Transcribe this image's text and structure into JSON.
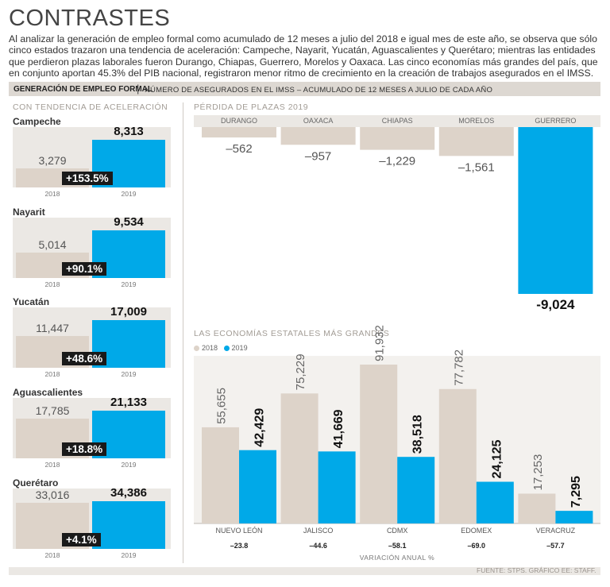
{
  "title": "CONTRASTES",
  "intro": "Al analizar la generación de empleo formal como acumulado de 12 meses a julio del 2018 e igual mes de este año, se observa que sólo cinco estados trazaron una tendencia de aceleración: Campeche, Nayarit, Yucatán, Aguascalientes y Querétaro; mientras las entidades que perdieron plazas laborales fueron Durango, Chiapas, Guerrero, Morelos y Oaxaca. Las cinco economías más grandes del país, que en conjunto aportan 45.3% del PIB nacional, registraron menor ritmo de crecimiento en la creación de trabajos asegurados en el IMSS.",
  "banner": {
    "bold": "GENERACIÓN DE EMPLEO FORMAL",
    "sep": "|",
    "rest": "NÚMERO DE ASEGURADOS EN EL IMSS – ACUMULADO DE 12 MESES A JULIO DE CADA AÑO"
  },
  "colors": {
    "y2018": "#ddd3c9",
    "y2019": "#00a9e8",
    "loss": "#ddd3c9"
  },
  "source": "FUENTE: STPS. GRÁFICO EE: STAFF.",
  "chart_data": [
    {
      "type": "bar",
      "title": "CON TENDENCIA DE ACELERACIÓN",
      "categories": [
        "2018",
        "2019"
      ],
      "series": [
        {
          "name": "Campeche",
          "values": [
            3279,
            8313
          ],
          "labels": [
            "3,279",
            "8,313"
          ],
          "change": "+153.5%"
        },
        {
          "name": "Nayarit",
          "values": [
            5014,
            9534
          ],
          "labels": [
            "5,014",
            "9,534"
          ],
          "change": "+90.1%"
        },
        {
          "name": "Yucatán",
          "values": [
            11447,
            17009
          ],
          "labels": [
            "11,447",
            "17,009"
          ],
          "change": "+48.6%"
        },
        {
          "name": "Aguascalientes",
          "values": [
            17785,
            21133
          ],
          "labels": [
            "17,785",
            "21,133"
          ],
          "change": "+18.8%"
        },
        {
          "name": "Querétaro",
          "values": [
            33016,
            34386
          ],
          "labels": [
            "33,016",
            "34,386"
          ],
          "change": "+4.1%"
        }
      ]
    },
    {
      "type": "bar",
      "title": "PÉRDIDA DE PLAZAS 2019",
      "categories": [
        "DURANGO",
        "OAXACA",
        "CHIAPAS",
        "MORELOS",
        "GUERRERO"
      ],
      "values": [
        -562,
        -957,
        -1229,
        -1561,
        -9024
      ],
      "labels": [
        "–562",
        "–957",
        "–1,229",
        "–1,561",
        "-9,024"
      ],
      "ylim": [
        -9024,
        0
      ]
    },
    {
      "type": "bar",
      "title": "LAS ECONOMÍAS ESTATALES MÁS GRANDES",
      "categories": [
        "NUEVO LEÓN",
        "JALISCO",
        "CDMX",
        "EDOMEX",
        "VERACRUZ"
      ],
      "series": [
        {
          "name": "2018",
          "values": [
            55655,
            75229,
            91932,
            77782,
            17253
          ],
          "labels": [
            "55,655",
            "75,229",
            "91,932",
            "77,782",
            "17,253"
          ]
        },
        {
          "name": "2019",
          "values": [
            42429,
            41669,
            38518,
            24125,
            7295
          ],
          "labels": [
            "42,429",
            "41,669",
            "38,518",
            "24,125",
            "7,295"
          ]
        }
      ],
      "variation": [
        -23.8,
        -44.6,
        -58.1,
        -69.0,
        -57.7
      ],
      "variation_labels": [
        "–23.8",
        "–44.6",
        "–58.1",
        "–69.0",
        "–57.7"
      ],
      "xlabel": "VARIACIÓN ANUAL %",
      "ylim": [
        0,
        91932
      ]
    }
  ]
}
